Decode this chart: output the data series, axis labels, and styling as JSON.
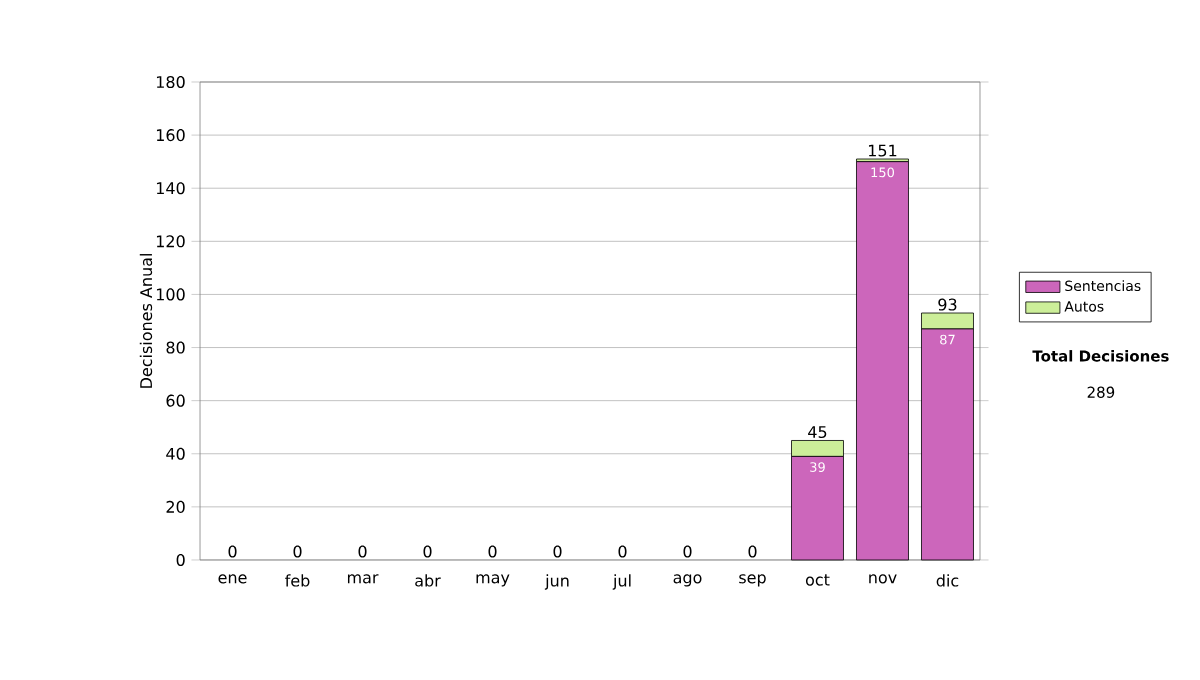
{
  "chart_data": {
    "type": "bar",
    "stacked": true,
    "ylabel": "Decisiones Anual",
    "categories": [
      "ene",
      "feb",
      "mar",
      "abr",
      "may",
      "jun",
      "jul",
      "ago",
      "sep",
      "oct",
      "nov",
      "dic"
    ],
    "series": [
      {
        "name": "Sentencias",
        "color": "#cc66bb",
        "values": [
          0,
          0,
          0,
          0,
          0,
          0,
          0,
          0,
          0,
          39,
          150,
          87
        ],
        "value_labels": [
          null,
          null,
          null,
          null,
          null,
          null,
          null,
          null,
          null,
          "39",
          "150",
          "87"
        ]
      },
      {
        "name": "Autos",
        "color": "#ccee99",
        "values": [
          0,
          0,
          0,
          0,
          0,
          0,
          0,
          0,
          0,
          6,
          1,
          6
        ]
      }
    ],
    "totals": [
      "0",
      "0",
      "0",
      "0",
      "0",
      "0",
      "0",
      "0",
      "0",
      "45",
      "151",
      "93"
    ],
    "ylim": [
      0,
      180
    ],
    "yticks": [
      0,
      20,
      40,
      60,
      80,
      100,
      120,
      140,
      160,
      180
    ],
    "grid": "y",
    "legend": "right",
    "annotations": [
      "Total Decisiones",
      "289"
    ]
  }
}
